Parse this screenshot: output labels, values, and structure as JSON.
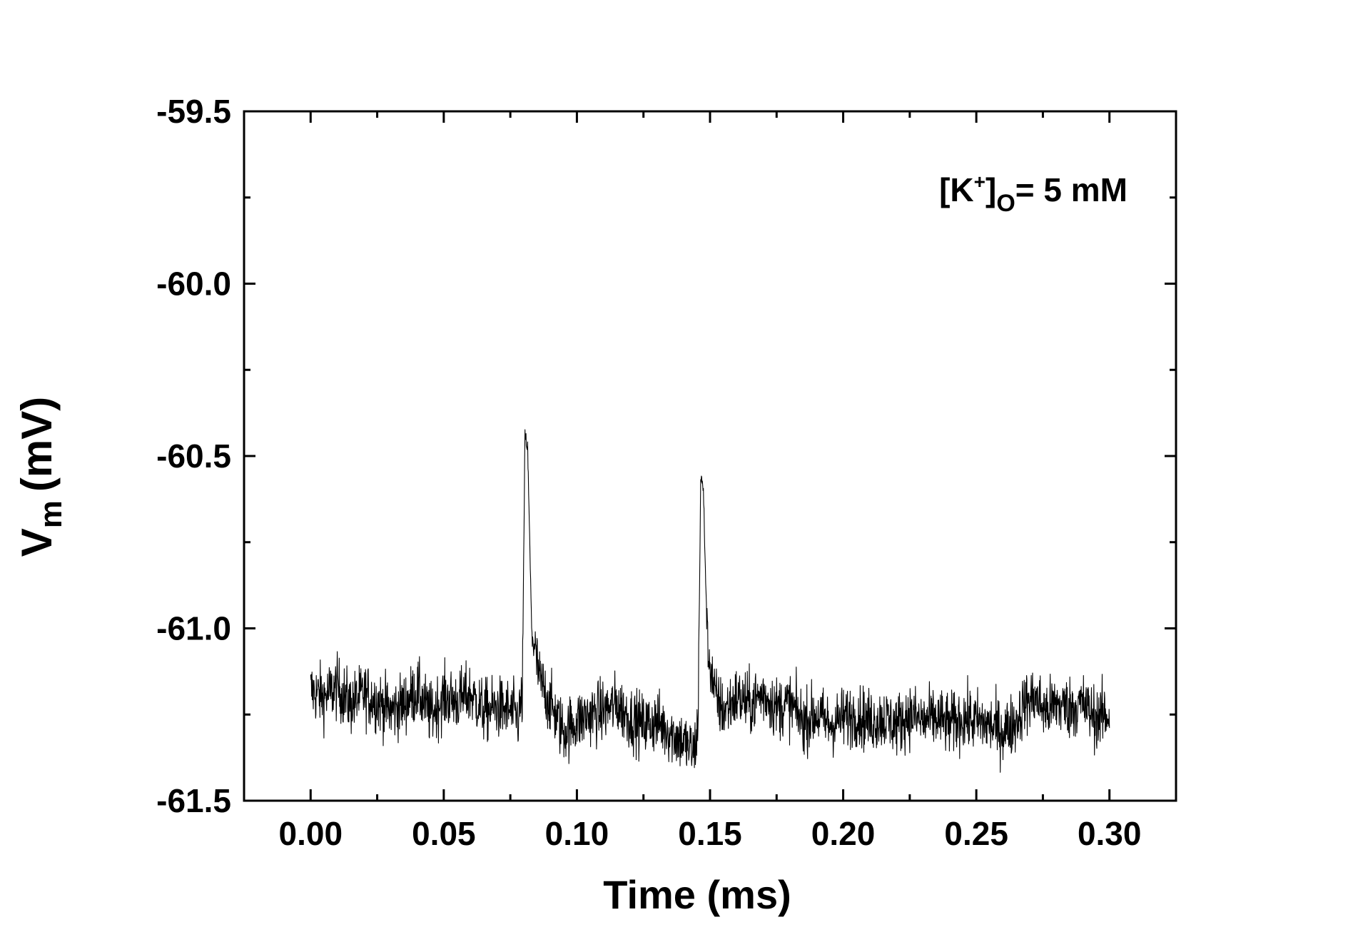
{
  "chart_data": {
    "type": "line",
    "title": "",
    "xlabel": "Time (ms)",
    "ylabel": {
      "main": "V",
      "sub": "m",
      "unit": "(mV)"
    },
    "xlim": [
      -0.025,
      0.325
    ],
    "ylim": [
      -61.5,
      -59.5
    ],
    "x_ticks": [
      0.0,
      0.05,
      0.1,
      0.15,
      0.2,
      0.25,
      0.3
    ],
    "x_tick_labels": [
      "0.00",
      "0.05",
      "0.10",
      "0.15",
      "0.20",
      "0.25",
      "0.30"
    ],
    "y_ticks": [
      -61.5,
      -61.0,
      -60.5,
      -60.0,
      -59.5
    ],
    "y_tick_labels": [
      "-61.5",
      "-61.0",
      "-60.5",
      "-60.0",
      "-59.5"
    ],
    "grid": false,
    "annotation": {
      "prefix": "[K",
      "sup": "+",
      "close": "]",
      "sub": "O",
      "suffix": "= 5 mM"
    },
    "series": [
      {
        "color": "#000000",
        "points": [
          [
            0.0,
            -61.18
          ],
          [
            0.005,
            -61.2
          ],
          [
            0.01,
            -61.17
          ],
          [
            0.015,
            -61.22
          ],
          [
            0.02,
            -61.19
          ],
          [
            0.025,
            -61.21
          ],
          [
            0.03,
            -61.24
          ],
          [
            0.035,
            -61.22
          ],
          [
            0.04,
            -61.18
          ],
          [
            0.045,
            -61.25
          ],
          [
            0.05,
            -61.2
          ],
          [
            0.055,
            -61.21
          ],
          [
            0.06,
            -61.19
          ],
          [
            0.065,
            -61.24
          ],
          [
            0.07,
            -61.23
          ],
          [
            0.075,
            -61.24
          ],
          [
            0.078,
            -61.26
          ],
          [
            0.0795,
            -61.2
          ],
          [
            0.0805,
            -60.44
          ],
          [
            0.0815,
            -60.48
          ],
          [
            0.083,
            -61.0
          ],
          [
            0.086,
            -61.15
          ],
          [
            0.09,
            -61.22
          ],
          [
            0.095,
            -61.3
          ],
          [
            0.1,
            -61.27
          ],
          [
            0.105,
            -61.25
          ],
          [
            0.11,
            -61.24
          ],
          [
            0.115,
            -61.22
          ],
          [
            0.12,
            -61.26
          ],
          [
            0.125,
            -61.28
          ],
          [
            0.13,
            -61.27
          ],
          [
            0.135,
            -61.3
          ],
          [
            0.14,
            -61.33
          ],
          [
            0.144,
            -61.36
          ],
          [
            0.1455,
            -61.28
          ],
          [
            0.1465,
            -60.56
          ],
          [
            0.1475,
            -60.6
          ],
          [
            0.149,
            -61.05
          ],
          [
            0.152,
            -61.2
          ],
          [
            0.155,
            -61.24
          ],
          [
            0.16,
            -61.2
          ],
          [
            0.165,
            -61.22
          ],
          [
            0.17,
            -61.19
          ],
          [
            0.175,
            -61.23
          ],
          [
            0.18,
            -61.22
          ],
          [
            0.185,
            -61.27
          ],
          [
            0.19,
            -61.25
          ],
          [
            0.195,
            -61.28
          ],
          [
            0.2,
            -61.26
          ],
          [
            0.205,
            -61.25
          ],
          [
            0.21,
            -61.27
          ],
          [
            0.215,
            -61.26
          ],
          [
            0.22,
            -61.28
          ],
          [
            0.225,
            -61.25
          ],
          [
            0.23,
            -61.27
          ],
          [
            0.235,
            -61.26
          ],
          [
            0.24,
            -61.28
          ],
          [
            0.245,
            -61.26
          ],
          [
            0.25,
            -61.27
          ],
          [
            0.255,
            -61.28
          ],
          [
            0.26,
            -61.3
          ],
          [
            0.265,
            -61.27
          ],
          [
            0.268,
            -61.22
          ],
          [
            0.272,
            -61.2
          ],
          [
            0.276,
            -61.24
          ],
          [
            0.28,
            -61.22
          ],
          [
            0.285,
            -61.23
          ],
          [
            0.29,
            -61.22
          ],
          [
            0.295,
            -61.26
          ],
          [
            0.3,
            -61.25
          ]
        ],
        "noise_amplitude": 0.045
      }
    ]
  }
}
